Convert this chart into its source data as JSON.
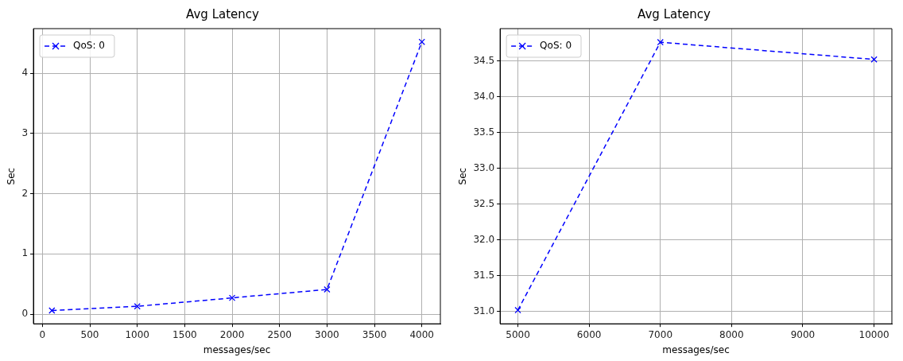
{
  "chart_data": [
    {
      "type": "line",
      "title": "Avg Latency",
      "xlabel": "messages/sec",
      "ylabel": "Sec",
      "x": [
        100,
        1000,
        2000,
        3000,
        4000
      ],
      "series": [
        {
          "name": "QoS: 0",
          "color": "#0000ff",
          "values": [
            0.06,
            0.13,
            0.27,
            0.41,
            4.52
          ]
        }
      ],
      "xlim": [
        -95,
        4195
      ],
      "ylim": [
        -0.16,
        4.74
      ],
      "xticks": [
        0,
        500,
        1000,
        1500,
        2000,
        2500,
        3000,
        3500,
        4000
      ],
      "yticks": [
        0,
        1,
        2,
        3,
        4
      ],
      "grid": true,
      "legend": "top left",
      "marker": "cross",
      "line_style": "dashed"
    },
    {
      "type": "line",
      "title": "Avg Latency",
      "xlabel": "messages/sec",
      "ylabel": "Sec",
      "x": [
        5000,
        7000,
        10000
      ],
      "series": [
        {
          "name": "QoS: 0",
          "color": "#0000ff",
          "values": [
            31.02,
            34.76,
            34.52
          ]
        }
      ],
      "xlim": [
        4750,
        10250
      ],
      "ylim": [
        30.83,
        34.95
      ],
      "xticks": [
        5000,
        6000,
        7000,
        8000,
        9000,
        10000
      ],
      "yticks": [
        {
          "value": 31,
          "label": "31.0"
        },
        {
          "value": 31.5,
          "label": "31.5"
        },
        {
          "value": 32,
          "label": "32.0"
        },
        {
          "value": 32.5,
          "label": "32.5"
        },
        {
          "value": 33,
          "label": "33.0"
        },
        {
          "value": 33.5,
          "label": "33.5"
        },
        {
          "value": 34,
          "label": "34.0"
        },
        {
          "value": 34.5,
          "label": "34.5"
        }
      ],
      "grid": true,
      "legend": "top left",
      "marker": "cross",
      "line_style": "dashed"
    }
  ]
}
